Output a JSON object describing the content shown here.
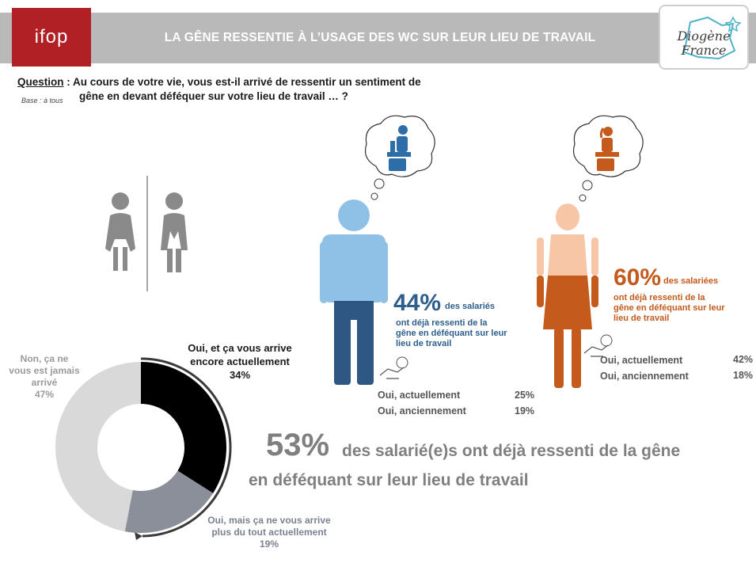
{
  "header": {
    "logo_text": "ifop",
    "title": "LA GÊNE RESSENTIE À L’USAGE DES WC SUR LEUR LIEU DE TRAVAIL",
    "partner_logo_line1": "Diogène",
    "partner_logo_line2": "France"
  },
  "question": {
    "label": "Question",
    "text_line1": " : Au cours de votre vie, vous est-il arrivé de ressentir un sentiment de",
    "text_line2": "gêne en devant déféquer sur votre lieu de travail …  ?",
    "base": "Base : à tous"
  },
  "men": {
    "percent": "44%",
    "percent_suffix": "des salariés",
    "desc_lines": [
      "ont déjà ressenti de la",
      "gêne en déféquant sur leur",
      "lieu de travail"
    ],
    "breakdown": [
      {
        "label": "Oui, actuellement",
        "value": "25%"
      },
      {
        "label": "Oui, anciennement",
        "value": "19%"
      }
    ]
  },
  "women": {
    "percent": "60%",
    "percent_suffix": "des salariées",
    "desc_lines": [
      "ont déjà ressenti de la",
      "gêne en déféquant sur leur",
      "lieu de travail"
    ],
    "breakdown": [
      {
        "label": "Oui, actuellement",
        "value": "42%"
      },
      {
        "label": "Oui, anciennement",
        "value": "18%"
      }
    ]
  },
  "summary": {
    "percent": "53%",
    "line1": "des salarié(e)s ont déjà ressenti de la gêne",
    "line2": "en déféquant sur leur lieu de travail"
  },
  "colors": {
    "men_head": "#8fc1e6",
    "men_body": "#8fc1e6",
    "men_legs": "#2e5783",
    "women_top": "#f6c6a6",
    "women_bottom": "#c45a1b",
    "donut_black": "#000000",
    "donut_slate": "#8a8f99",
    "donut_light": "#d9d9d9",
    "pictogram_grey": "#8a8a8a"
  },
  "chart_data": {
    "type": "pie",
    "donut": true,
    "slices": [
      {
        "label": "Oui, et ça vous arrive encore actuellement",
        "value": 34,
        "color": "#000000",
        "label_lines": [
          "Oui, et ça vous arrive",
          "encore actuellement",
          "34%"
        ]
      },
      {
        "label": "Oui, mais ça ne vous arrive plus du tout actuellement",
        "value": 19,
        "color": "#8a8f99",
        "label_lines": [
          "Oui, mais ça ne vous arrive",
          "plus du tout actuellement",
          "19%"
        ]
      },
      {
        "label": "Non, ça ne vous est jamais arrivé",
        "value": 47,
        "color": "#d9d9d9",
        "label_lines": [
          "Non, ça ne",
          "vous est jamais",
          "arrivé",
          "47%"
        ]
      }
    ]
  }
}
